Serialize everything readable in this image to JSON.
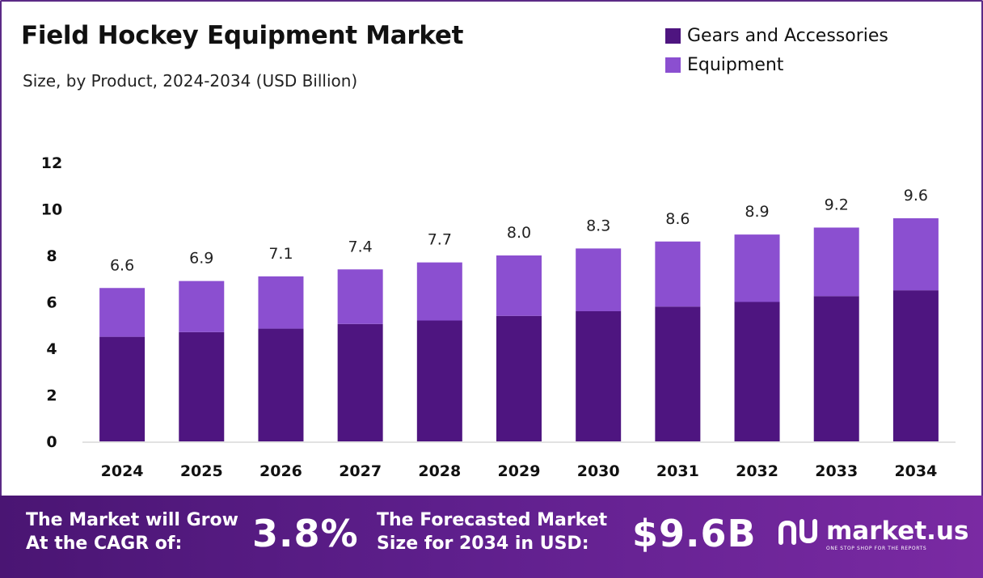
{
  "header": {
    "title": "Field Hockey Equipment Market",
    "subtitle": "Size, by Product, 2024-2034 (USD Billion)"
  },
  "legend": [
    {
      "label": "Gears and Accessories",
      "color": "#4e1580"
    },
    {
      "label": "Equipment",
      "color": "#8b4fd0"
    }
  ],
  "chart_data": {
    "type": "bar",
    "stacked": true,
    "categories": [
      "2024",
      "2025",
      "2026",
      "2027",
      "2028",
      "2029",
      "2030",
      "2031",
      "2032",
      "2033",
      "2034"
    ],
    "series": [
      {
        "name": "Gears and Accessories",
        "color": "#4e1580",
        "values": [
          4.5,
          4.7,
          4.85,
          5.05,
          5.2,
          5.4,
          5.6,
          5.8,
          6.0,
          6.25,
          6.5
        ]
      },
      {
        "name": "Equipment",
        "color": "#8b4fd0",
        "values": [
          2.1,
          2.2,
          2.25,
          2.35,
          2.5,
          2.6,
          2.7,
          2.8,
          2.9,
          2.95,
          3.1
        ]
      }
    ],
    "totals": [
      "6.6",
      "6.9",
      "7.1",
      "7.4",
      "7.7",
      "8.0",
      "8.3",
      "8.6",
      "8.9",
      "9.2",
      "9.6"
    ],
    "ylim": [
      0,
      12
    ],
    "yticks": [
      0,
      2,
      4,
      6,
      8,
      10,
      12
    ],
    "grid": false,
    "legend_position": "top-right"
  },
  "footer": {
    "cagr_text_line1": "The Market will Grow",
    "cagr_text_line2": "At the CAGR of:",
    "cagr_value": "3.8%",
    "forecast_text_line1": "The Forecasted Market",
    "forecast_text_line2": "Size for 2034 in USD:",
    "forecast_value": "$9.6B",
    "brand_name": "market.us",
    "brand_tagline": "ONE STOP SHOP FOR THE REPORTS"
  }
}
